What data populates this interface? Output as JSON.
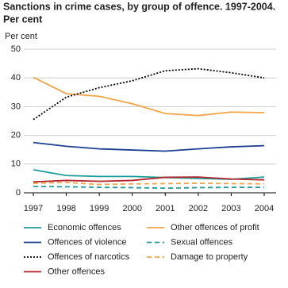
{
  "chart_data": {
    "type": "line",
    "title": "Sanctions in crime cases, by group of offence. 1997-2004.",
    "subtitle": "Per cent",
    "y_label": "Per cent",
    "categories": [
      "1997",
      "1998",
      "1999",
      "2000",
      "2001",
      "2002",
      "2003",
      "2004"
    ],
    "ylim": [
      0,
      50
    ],
    "yticks": [
      0,
      10,
      20,
      30,
      40,
      50
    ],
    "grid": true,
    "series": [
      {
        "name": "Economic offences",
        "color": "#1f9c9a",
        "style": "solid",
        "values": [
          8,
          6,
          5.7,
          5.7,
          5.3,
          5,
          4.7,
          5.5
        ]
      },
      {
        "name": "Other offences of profit",
        "color": "#f4a446",
        "style": "solid",
        "values": [
          40.2,
          34.5,
          33.6,
          31,
          27.6,
          26.9,
          28.1,
          27.9
        ]
      },
      {
        "name": "Offences of violence",
        "color": "#1c3f94",
        "style": "solid",
        "values": [
          17.5,
          16.2,
          15.3,
          14.9,
          14.5,
          15.3,
          16,
          16.4
        ]
      },
      {
        "name": "Sexual offences",
        "color": "#1f9c9a",
        "style": "dashed",
        "values": [
          2.2,
          2.1,
          1.9,
          1.8,
          1.6,
          1.8,
          1.9,
          1.9
        ]
      },
      {
        "name": "Offences of narcotics",
        "color": "#000000",
        "style": "dotted",
        "values": [
          25.5,
          33.3,
          36.6,
          39,
          42.5,
          43.2,
          41.8,
          40
        ]
      },
      {
        "name": "Damage to property",
        "color": "#f4a446",
        "style": "dashed",
        "values": [
          3.3,
          3.6,
          2.9,
          3.1,
          3.2,
          3.3,
          3.2,
          3.1
        ]
      },
      {
        "name": "Other offences",
        "color": "#b5262c",
        "style": "solid",
        "values": [
          3.8,
          4.3,
          4,
          4.3,
          5.4,
          5.5,
          4.8,
          4.5
        ]
      }
    ]
  }
}
